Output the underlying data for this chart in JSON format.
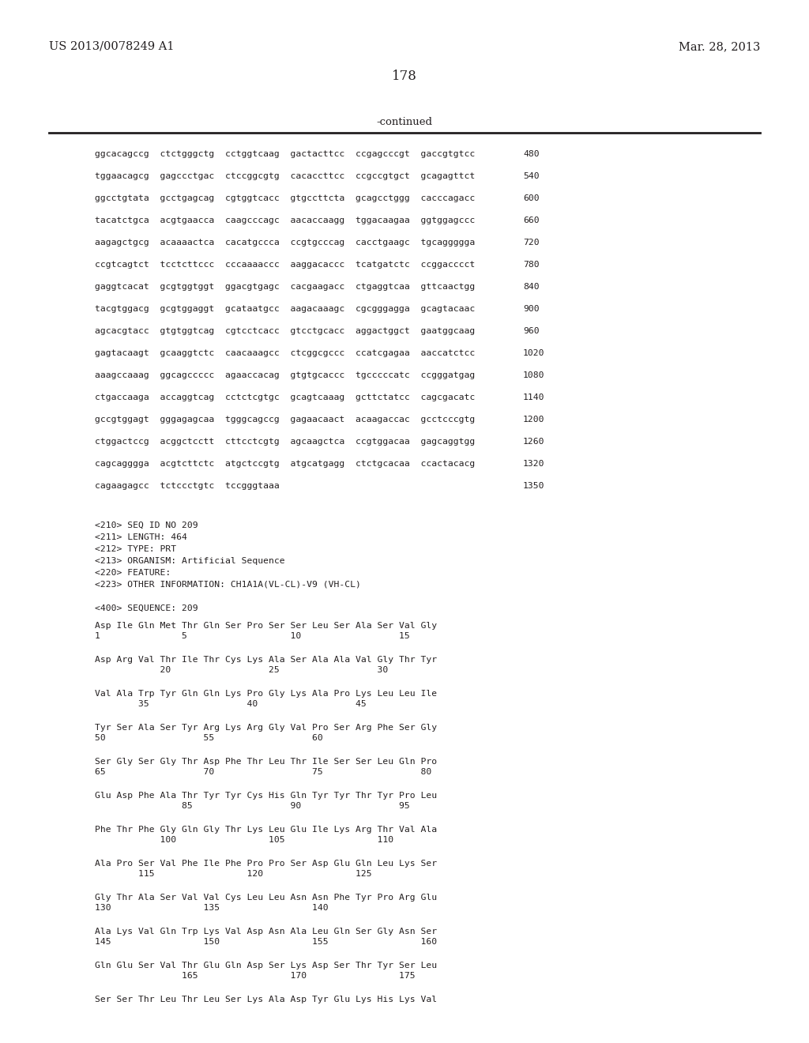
{
  "header_left": "US 2013/0078249 A1",
  "header_right": "Mar. 28, 2013",
  "page_number": "178",
  "continued_label": "-continued",
  "background_color": "#ffffff",
  "text_color": "#231f20",
  "line_color": "#231f20",
  "nucleotide_lines": [
    [
      "ggcacagccg  ctctgggctg  cctggtcaag  gactacttcc  ccgagcccgt  gaccgtgtcc",
      "480"
    ],
    [
      "tggaacagcg  gagccctgac  ctccggcgtg  cacaccttcc  ccgccgtgct  gcagagttct",
      "540"
    ],
    [
      "ggcctgtata  gcctgagcag  cgtggtcacc  gtgccttcta  gcagcctggg  cacccagacc",
      "600"
    ],
    [
      "tacatctgca  acgtgaacca  caagcccagc  aacaccaagg  tggacaagaa  ggtggagccc",
      "660"
    ],
    [
      "aagagctgcg  acaaaactca  cacatgccca  ccgtgcccag  cacctgaagc  tgcaggggga",
      "720"
    ],
    [
      "ccgtcagtct  tcctcttccc  cccaaaaccc  aaggacaccc  tcatgatctc  ccggacccct",
      "780"
    ],
    [
      "gaggtcacat  gcgtggtggt  ggacgtgagc  cacgaagacc  ctgaggtcaa  gttcaactgg",
      "840"
    ],
    [
      "tacgtggacg  gcgtggaggt  gcataatgcc  aagacaaagc  cgcgggagga  gcagtacaac",
      "900"
    ],
    [
      "agcacgtacc  gtgtggtcag  cgtcctcacc  gtcctgcacc  aggactggct  gaatggcaag",
      "960"
    ],
    [
      "gagtacaagt  gcaaggtctc  caacaaagcc  ctcggcgccc  ccatcgagaa  aaccatctcc",
      "1020"
    ],
    [
      "aaagccaaag  ggcagccccc  agaaccacag  gtgtgcaccc  tgcccccatc  ccgggatgag",
      "1080"
    ],
    [
      "ctgaccaaga  accaggtcag  cctctcgtgc  gcagtcaaag  gcttctatcc  cagcgacatc",
      "1140"
    ],
    [
      "gccgtggagt  gggagagcaa  tgggcagccg  gagaacaact  acaagaccac  gcctcccgtg",
      "1200"
    ],
    [
      "ctggactccg  acggctcctt  cttcctcgtg  agcaagctca  ccgtggacaa  gagcaggtgg",
      "1260"
    ],
    [
      "cagcagggga  acgtcttctc  atgctccgtg  atgcatgagg  ctctgcacaa  ccactacacg",
      "1320"
    ],
    [
      "cagaagagcc  tctccctgtc  tccgggtaaa",
      "1350"
    ]
  ],
  "metadata_lines": [
    "<210> SEQ ID NO 209",
    "<211> LENGTH: 464",
    "<212> TYPE: PRT",
    "<213> ORGANISM: Artificial Sequence",
    "<220> FEATURE:",
    "<223> OTHER INFORMATION: CH1A1A(VL-CL)-V9 (VH-CL)"
  ],
  "sequence_header": "<400> SEQUENCE: 209",
  "protein_lines": [
    {
      "residues": "Asp Ile Gln Met Thr Gln Ser Pro Ser Ser Leu Ser Ala Ser Val Gly",
      "numbers": "1               5                   10                  15"
    },
    {
      "residues": "Asp Arg Val Thr Ile Thr Cys Lys Ala Ser Ala Ala Val Gly Thr Tyr",
      "numbers": "            20                  25                  30"
    },
    {
      "residues": "Val Ala Trp Tyr Gln Gln Lys Pro Gly Lys Ala Pro Lys Leu Leu Ile",
      "numbers": "        35                  40                  45"
    },
    {
      "residues": "Tyr Ser Ala Ser Tyr Arg Lys Arg Gly Val Pro Ser Arg Phe Ser Gly",
      "numbers": "50                  55                  60"
    },
    {
      "residues": "Ser Gly Ser Gly Thr Asp Phe Thr Leu Thr Ile Ser Ser Leu Gln Pro",
      "numbers": "65                  70                  75                  80"
    },
    {
      "residues": "Glu Asp Phe Ala Thr Tyr Tyr Cys His Gln Tyr Tyr Thr Tyr Pro Leu",
      "numbers": "                85                  90                  95"
    },
    {
      "residues": "Phe Thr Phe Gly Gln Gly Thr Lys Leu Glu Ile Lys Arg Thr Val Ala",
      "numbers": "            100                 105                 110"
    },
    {
      "residues": "Ala Pro Ser Val Phe Ile Phe Pro Pro Ser Asp Glu Gln Leu Lys Ser",
      "numbers": "        115                 120                 125"
    },
    {
      "residues": "Gly Thr Ala Ser Val Val Cys Leu Leu Asn Asn Phe Tyr Pro Arg Glu",
      "numbers": "130                 135                 140"
    },
    {
      "residues": "Ala Lys Val Gln Trp Lys Val Asp Asn Ala Leu Gln Ser Gly Asn Ser",
      "numbers": "145                 150                 155                 160"
    },
    {
      "residues": "Gln Glu Ser Val Thr Glu Gln Asp Ser Lys Asp Ser Thr Tyr Ser Leu",
      "numbers": "                165                 170                 175"
    },
    {
      "residues": "Ser Ser Thr Leu Thr Leu Ser Lys Ala Asp Tyr Glu Lys His Lys Val",
      "numbers": ""
    }
  ]
}
